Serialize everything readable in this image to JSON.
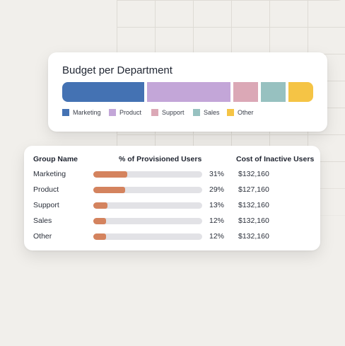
{
  "budget": {
    "title": "Budget per Department",
    "segments": [
      {
        "name": "Marketing",
        "color": "#4472b3"
      },
      {
        "name": "Product",
        "color": "#c3a6d8"
      },
      {
        "name": "Support",
        "color": "#dba8b6"
      },
      {
        "name": "Sales",
        "color": "#97c1c0"
      },
      {
        "name": "Other",
        "color": "#f5c445"
      }
    ],
    "legend": [
      "Marketing",
      "Product",
      "Support",
      "Sales",
      "Other"
    ]
  },
  "table": {
    "headers": [
      "Group Name",
      "% of Provisioned Users",
      "Cost of Inactive Users"
    ],
    "rows": [
      {
        "name": "Marketing",
        "pct": "31%",
        "pct_value": 0.31,
        "cost": "$132,160"
      },
      {
        "name": "Product",
        "pct": "29%",
        "pct_value": 0.29,
        "cost": "$127,160"
      },
      {
        "name": "Support",
        "pct": "13%",
        "pct_value": 0.13,
        "cost": "$132,160"
      },
      {
        "name": "Sales",
        "pct": "12%",
        "pct_value": 0.12,
        "cost": "$132,160"
      },
      {
        "name": "Other",
        "pct": "12%",
        "pct_value": 0.12,
        "cost": "$132,160"
      }
    ],
    "bar_color": "#d4835e"
  }
}
